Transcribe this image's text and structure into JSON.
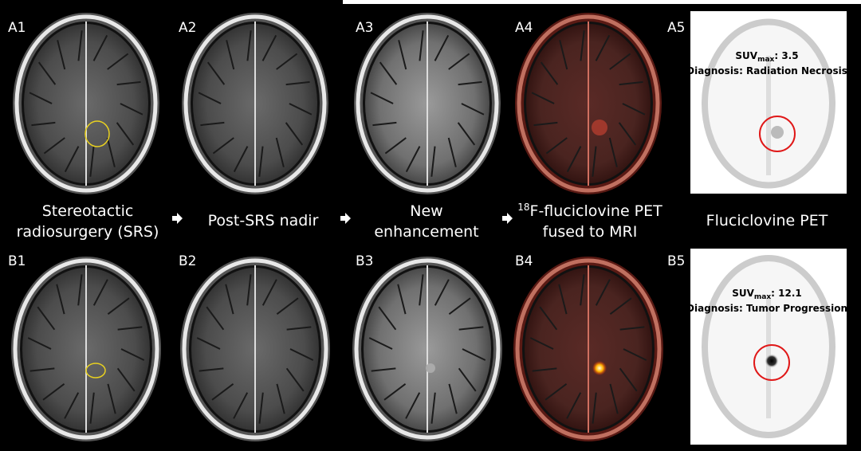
{
  "panels": {
    "row_a": [
      "A1",
      "A2",
      "A3",
      "A4",
      "A5"
    ],
    "row_b": [
      "B1",
      "B2",
      "B3",
      "B4",
      "B5"
    ]
  },
  "captions": {
    "srs": [
      "Stereotactic",
      "radiosurgery (SRS)"
    ],
    "nadir": [
      "Post-SRS nadir"
    ],
    "enhancement": [
      "New",
      "enhancement"
    ],
    "fused": {
      "superscript": "18",
      "lines": [
        "F-fluciclovine PET",
        "fused to MRI"
      ]
    },
    "pet": [
      "Fluciclovine PET"
    ]
  },
  "pet_results": [
    {
      "label": "SUV",
      "subscript": "max",
      "text": ": 3.5",
      "diagnosis": "Diagnosis: Radiation Necrosis"
    },
    {
      "label": "SUV",
      "subscript": "max",
      "text": ": 12.1",
      "diagnosis": "Diagnosis: Tumor Progression"
    }
  ]
}
